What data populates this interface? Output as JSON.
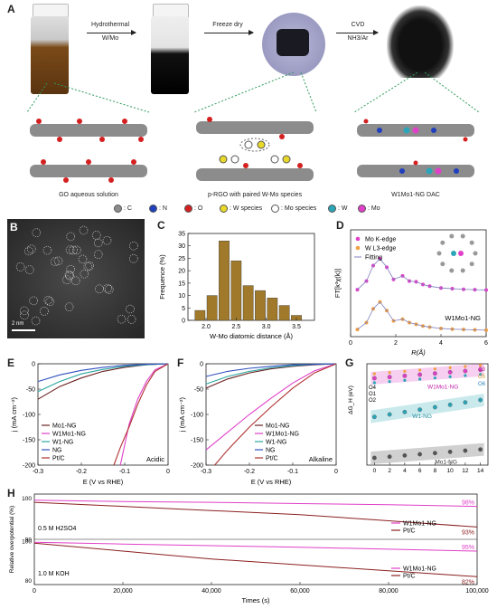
{
  "panel_a": {
    "label": "A",
    "steps": [
      {
        "line1": "Hydrothermal",
        "line2": "W/Mo"
      },
      {
        "line1": "Freeze dry",
        "line2": ""
      },
      {
        "line1": "CVD",
        "line2": "NH3/Ar"
      }
    ],
    "captions": [
      "GO aqueous solution",
      "p-RGO with paired W-Mo species",
      "W1Mo1-NG DAC"
    ],
    "legend": [
      {
        "label": ": C",
        "color": "#8c8c8c"
      },
      {
        "label": ": N",
        "color": "#1f3fbf"
      },
      {
        "label": ": O",
        "color": "#d42020"
      },
      {
        "label": ": W species",
        "color": "#e8d82a"
      },
      {
        "label": ": Mo species",
        "color": "#ffffff"
      },
      {
        "label": ": W",
        "color": "#2aa6b8"
      },
      {
        "label": ": Mo",
        "color": "#e040c8"
      }
    ]
  },
  "panel_b": {
    "label": "B",
    "scale": "2 nm"
  },
  "panel_c": {
    "label": "C"
  },
  "panel_d": {
    "label": "D",
    "sample": "W1Mo1-NG"
  },
  "panel_e": {
    "label": "E",
    "condition": "Acidic"
  },
  "panel_f": {
    "label": "F",
    "condition": "Alkaline"
  },
  "panel_g": {
    "label": "G"
  },
  "panel_h": {
    "label": "H"
  },
  "chart_data": [
    {
      "panel": "C",
      "type": "bar",
      "categories": [
        1.9,
        2.1,
        2.3,
        2.5,
        2.7,
        2.9,
        3.1,
        3.3,
        3.5
      ],
      "values": [
        4,
        10,
        32,
        24,
        14,
        12,
        9,
        6,
        2
      ],
      "xlabel": "W-Mo diatomic distance (Å)",
      "ylabel": "Frequence (%)",
      "xticks": [
        "2.0",
        "2.5",
        "3.0",
        "3.5"
      ],
      "yticks": [
        0,
        5,
        10,
        15,
        20,
        25,
        30,
        35
      ],
      "xlim": [
        1.7,
        3.8
      ],
      "ylim": [
        0,
        35
      ],
      "color": "#a07a2a"
    },
    {
      "panel": "D",
      "type": "line",
      "xlabel": "R(Å)",
      "ylabel": "FT[k³χ(k)]",
      "xticks": [
        0,
        2,
        4,
        6
      ],
      "xlim": [
        0,
        6
      ],
      "series": [
        {
          "name": "Mo K-edge",
          "color": "#e040c8",
          "x": [
            0.3,
            0.7,
            1.0,
            1.3,
            1.6,
            1.9,
            2.3,
            2.6,
            2.9,
            3.2,
            3.5,
            4.0,
            4.5,
            5.0,
            5.5,
            6.0
          ],
          "y": [
            0.05,
            0.3,
            0.75,
            0.95,
            0.7,
            0.35,
            0.45,
            0.3,
            0.28,
            0.2,
            0.15,
            0.1,
            0.08,
            0.06,
            0.05,
            0.04
          ]
        },
        {
          "name": "W L3-edge",
          "color": "#f0a040",
          "x": [
            0.3,
            0.7,
            1.0,
            1.3,
            1.6,
            1.9,
            2.3,
            2.6,
            2.9,
            3.2,
            3.5,
            4.0,
            4.5,
            5.0,
            5.5,
            6.0
          ],
          "y": [
            0.05,
            0.25,
            0.65,
            0.85,
            0.6,
            0.3,
            0.35,
            0.25,
            0.2,
            0.15,
            0.12,
            0.08,
            0.06,
            0.05,
            0.04,
            0.03
          ]
        },
        {
          "name": "Fitting",
          "color": "#8080c0"
        }
      ]
    },
    {
      "panel": "E",
      "type": "line",
      "xlabel": "E (V vs RHE)",
      "ylabel": "j (mA cm⁻²)",
      "xticks": [
        "-0.3",
        "-0.2",
        "-0.1",
        "0"
      ],
      "yticks": [
        0,
        -50,
        -100,
        -150,
        -200
      ],
      "xlim": [
        -0.3,
        0
      ],
      "ylim": [
        -200,
        0
      ],
      "series": [
        {
          "name": "Mo1-NG",
          "color": "#6b2020",
          "x": [
            -0.3,
            -0.25,
            -0.2,
            -0.15,
            -0.1,
            -0.05,
            0
          ],
          "y": [
            -70,
            -45,
            -28,
            -15,
            -7,
            -2,
            0
          ]
        },
        {
          "name": "W1Mo1-NG",
          "color": "#e040c8",
          "x": [
            -0.11,
            -0.1,
            -0.09,
            -0.07,
            -0.05,
            -0.03,
            0
          ],
          "y": [
            -200,
            -160,
            -120,
            -70,
            -35,
            -12,
            0
          ]
        },
        {
          "name": "W1-NG",
          "color": "#2aa6a0",
          "x": [
            -0.3,
            -0.25,
            -0.2,
            -0.15,
            -0.1,
            -0.05,
            0
          ],
          "y": [
            -55,
            -35,
            -20,
            -11,
            -5,
            -2,
            0
          ]
        },
        {
          "name": "NG",
          "color": "#3050c0",
          "x": [
            -0.3,
            -0.25,
            -0.2,
            -0.15,
            -0.1,
            -0.05,
            0
          ],
          "y": [
            -35,
            -22,
            -13,
            -7,
            -3,
            -1,
            0
          ]
        },
        {
          "name": "Pt/C",
          "color": "#b03030",
          "x": [
            -0.125,
            -0.11,
            -0.09,
            -0.07,
            -0.05,
            -0.03,
            0
          ],
          "y": [
            -200,
            -165,
            -125,
            -80,
            -42,
            -15,
            0
          ]
        }
      ]
    },
    {
      "panel": "F",
      "type": "line",
      "xlabel": "E (V vs RHE)",
      "ylabel": "j (mA cm⁻²)",
      "xticks": [
        "-0.3",
        "-0.2",
        "-0.1",
        "0"
      ],
      "yticks": [
        0,
        -50,
        -100,
        -150,
        -200
      ],
      "xlim": [
        -0.3,
        0
      ],
      "ylim": [
        -200,
        0
      ],
      "series": [
        {
          "name": "Mo1-NG",
          "color": "#6b2020",
          "x": [
            -0.3,
            -0.25,
            -0.2,
            -0.15,
            -0.1,
            -0.05,
            0
          ],
          "y": [
            -48,
            -30,
            -18,
            -10,
            -5,
            -2,
            0
          ]
        },
        {
          "name": "W1Mo1-NG",
          "color": "#e040c8",
          "x": [
            -0.3,
            -0.25,
            -0.2,
            -0.15,
            -0.1,
            -0.05,
            0
          ],
          "y": [
            -170,
            -135,
            -100,
            -68,
            -38,
            -14,
            0
          ]
        },
        {
          "name": "W1-NG",
          "color": "#2aa6a0",
          "x": [
            -0.3,
            -0.25,
            -0.2,
            -0.15,
            -0.1,
            -0.05,
            0
          ],
          "y": [
            -40,
            -25,
            -15,
            -8,
            -4,
            -1,
            0
          ]
        },
        {
          "name": "NG",
          "color": "#3050c0",
          "x": [
            -0.3,
            -0.25,
            -0.2,
            -0.15,
            -0.1,
            -0.05,
            0
          ],
          "y": [
            -25,
            -15,
            -9,
            -5,
            -2,
            -1,
            0
          ]
        },
        {
          "name": "Pt/C",
          "color": "#b03030",
          "x": [
            -0.28,
            -0.25,
            -0.2,
            -0.15,
            -0.1,
            -0.05,
            0
          ],
          "y": [
            -200,
            -170,
            -125,
            -85,
            -48,
            -18,
            0
          ]
        }
      ]
    },
    {
      "panel": "G",
      "type": "scatter",
      "xlabel": "",
      "ylabel": "ΔG_H (eV)",
      "xticks": [
        0,
        2,
        4,
        6,
        8,
        10,
        12,
        14
      ],
      "xlim": [
        -1,
        15
      ],
      "series": [
        {
          "name": "W1Mo1-NG",
          "color": "#e040c8",
          "x": [
            0,
            2,
            4,
            6,
            8,
            10,
            12,
            14
          ],
          "y": [
            0.0,
            0.05,
            0.1,
            0.15,
            0.2,
            0.25,
            0.3,
            0.35
          ]
        },
        {
          "name": "W1-NG",
          "color": "#2aa6b8",
          "x": [
            0,
            2,
            4,
            6,
            8,
            10,
            12,
            14
          ],
          "y": [
            -1.6,
            -1.5,
            -1.4,
            -1.3,
            -1.2,
            -1.1,
            -1.0,
            -0.9
          ]
        },
        {
          "name": "Mo1-NG",
          "color": "#555555",
          "x": [
            0,
            2,
            4,
            6,
            8,
            10,
            12,
            14
          ],
          "y": [
            -3.3,
            -3.25,
            -3.2,
            -3.15,
            -3.1,
            -3.05,
            -3.0,
            -2.95
          ]
        }
      ],
      "site_labels": [
        "C3",
        "O5",
        "O6",
        "O4",
        "O1",
        "O2"
      ]
    },
    {
      "panel": "H",
      "type": "line",
      "xlabel": "Times (s)",
      "ylabel": "Relative overpotential (%)",
      "xticks": [
        "0",
        "20,000",
        "40,000",
        "60,000",
        "80,000",
        "100,000"
      ],
      "xlim": [
        0,
        100000
      ],
      "subplots": [
        {
          "condition": "0.5 M H2SO4",
          "series": [
            {
              "name": "W1Mo1-NG",
              "color": "#e040c8",
              "x": [
                0,
                20000,
                40000,
                60000,
                80000,
                100000
              ],
              "y": [
                99.5,
                99.2,
                99.0,
                98.7,
                98.4,
                98
              ]
            },
            {
              "name": "Pt/C",
              "color": "#8b2020",
              "x": [
                0,
                20000,
                40000,
                60000,
                80000,
                100000
              ],
              "y": [
                99,
                98,
                97,
                96,
                94.5,
                93
              ]
            }
          ],
          "end_labels": [
            "98%",
            "93%"
          ]
        },
        {
          "condition": "1.0 M KOH",
          "series": [
            {
              "name": "W1Mo1-NG",
              "color": "#e040c8",
              "x": [
                0,
                20000,
                40000,
                60000,
                80000,
                100000
              ],
              "y": [
                99.5,
                98.6,
                97.8,
                97,
                96,
                95
              ]
            },
            {
              "name": "Pt/C",
              "color": "#8b2020",
              "x": [
                0,
                20000,
                40000,
                60000,
                80000,
                100000
              ],
              "y": [
                99,
                95,
                91,
                88,
                85,
                82
              ]
            }
          ],
          "end_labels": [
            "95%",
            "82%"
          ]
        }
      ]
    }
  ]
}
